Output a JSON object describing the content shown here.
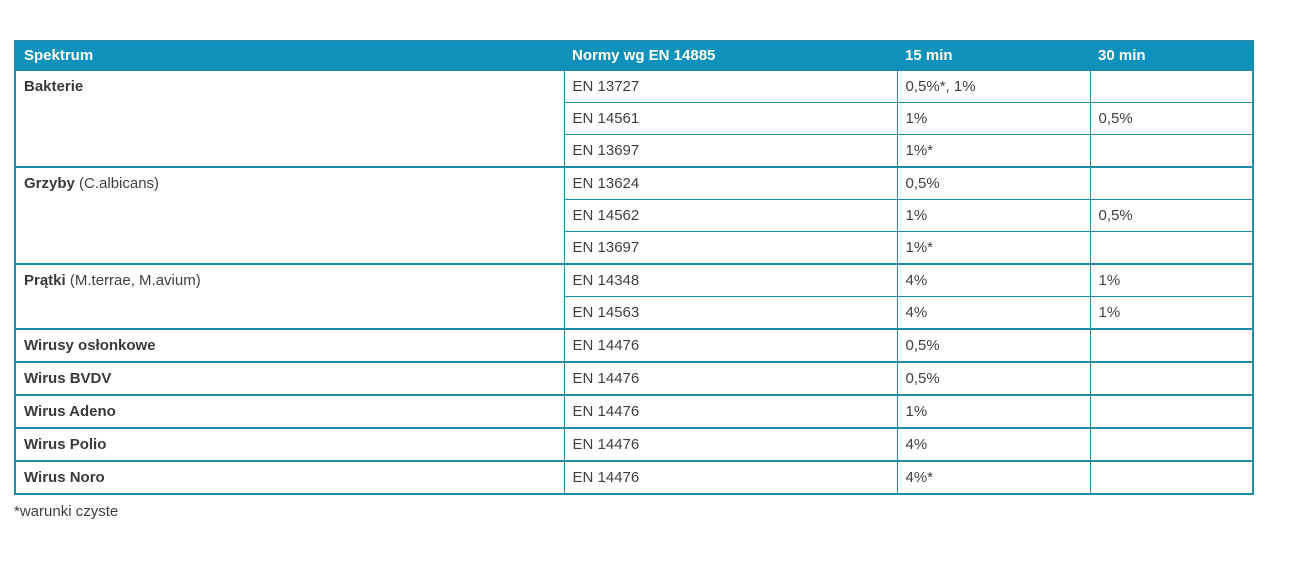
{
  "colors": {
    "header_bg": "#0E92BC",
    "border": "#1E8CAA",
    "header_text": "#FFFFFF",
    "body_text": "#3F3F3F"
  },
  "table": {
    "headers": [
      {
        "label": "Spektrum"
      },
      {
        "label": "Normy wg EN 14885"
      },
      {
        "label": "15 min"
      },
      {
        "label": "30 min"
      }
    ],
    "sections": [
      {
        "spectrum_bold": "Bakterie",
        "spectrum_regular": "",
        "rows": [
          {
            "norm": "EN 13727",
            "min15": "0,5%*, 1%",
            "min30": ""
          },
          {
            "norm": "EN 14561",
            "min15": "1%",
            "min30": "0,5%"
          },
          {
            "norm": "EN 13697",
            "min15": "1%*",
            "min30": ""
          }
        ]
      },
      {
        "spectrum_bold": "Grzyby",
        "spectrum_regular": " (C.albicans)",
        "rows": [
          {
            "norm": "EN 13624",
            "min15": "0,5%",
            "min30": ""
          },
          {
            "norm": "EN 14562",
            "min15": "1%",
            "min30": "0,5%"
          },
          {
            "norm": "EN 13697",
            "min15": "1%*",
            "min30": ""
          }
        ]
      },
      {
        "spectrum_bold": "Prątki",
        "spectrum_regular": " (M.terrae, M.avium)",
        "rows": [
          {
            "norm": "EN 14348",
            "min15": "4%",
            "min30": "1%"
          },
          {
            "norm": "EN 14563",
            "min15": "4%",
            "min30": "1%"
          }
        ]
      },
      {
        "spectrum_bold": "Wirusy osłonkowe",
        "spectrum_regular": "",
        "rows": [
          {
            "norm": "EN 14476",
            "min15": "0,5%",
            "min30": ""
          }
        ]
      },
      {
        "spectrum_bold": "Wirus BVDV",
        "spectrum_regular": "",
        "rows": [
          {
            "norm": "EN 14476",
            "min15": "0,5%",
            "min30": ""
          }
        ]
      },
      {
        "spectrum_bold": "Wirus Adeno",
        "spectrum_regular": "",
        "rows": [
          {
            "norm": "EN 14476",
            "min15": "1%",
            "min30": ""
          }
        ]
      },
      {
        "spectrum_bold": "Wirus Polio",
        "spectrum_regular": "",
        "rows": [
          {
            "norm": "EN 14476",
            "min15": "4%",
            "min30": ""
          }
        ]
      },
      {
        "spectrum_bold": "Wirus Noro",
        "spectrum_regular": "",
        "rows": [
          {
            "norm": "EN 14476",
            "min15": "4%*",
            "min30": ""
          }
        ]
      }
    ],
    "footnote": "*warunki czyste"
  }
}
